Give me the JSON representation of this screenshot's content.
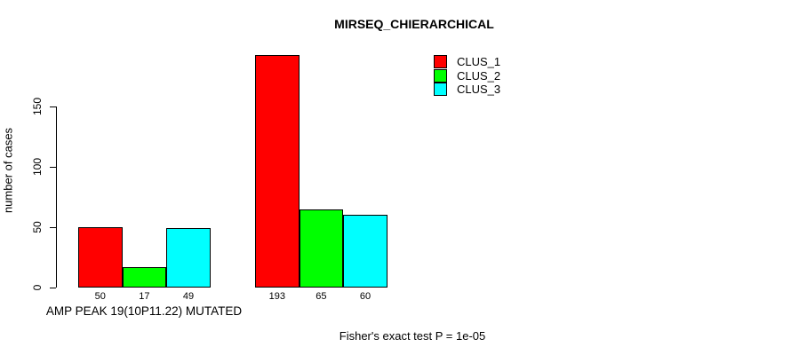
{
  "figure": {
    "title": "MIRSEQ_CHIERARCHICAL",
    "footnote": "Fisher's exact test P = 1e-05"
  },
  "chart_data": {
    "type": "bar",
    "title": "MIRSEQ_CHIERARCHICAL",
    "xlabel": "AMP PEAK 19(10P11.22) MUTATED",
    "ylabel": "number of cases",
    "footnote": "Fisher's exact test P = 1e-05",
    "series": [
      {
        "name": "CLUS_1",
        "color": "#ff0000",
        "values": [
          50,
          193
        ]
      },
      {
        "name": "CLUS_2",
        "color": "#00ff00",
        "values": [
          17,
          65
        ]
      },
      {
        "name": "CLUS_3",
        "color": "#00ffff",
        "values": [
          49,
          60
        ]
      }
    ],
    "group_count": 2,
    "bar_value_labels": [
      [
        50,
        17,
        49
      ],
      [
        193,
        65,
        60
      ]
    ],
    "yticks": [
      0,
      50,
      100,
      150
    ],
    "ylim": [
      0,
      150
    ],
    "grid": false,
    "legend_position": "top-right",
    "bar_border_color": "#000000",
    "background_color": "#ffffff"
  }
}
